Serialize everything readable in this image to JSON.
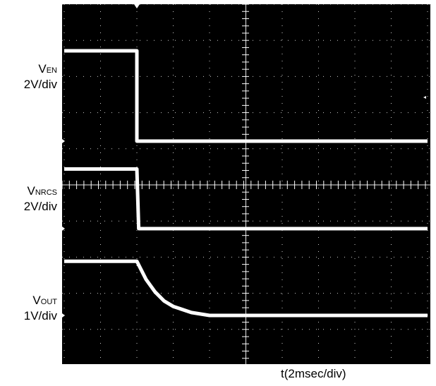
{
  "chart_data": {
    "type": "line",
    "title": "",
    "xlabel": "t(2msec/div)",
    "time_per_div_ms": 2,
    "x_divisions": 10,
    "y_divisions": 10,
    "grid": true,
    "channels": [
      {
        "label_main": "V",
        "label_sub": "EN",
        "scale": "2V/div"
      },
      {
        "label_main": "V",
        "label_sub": "NRCS",
        "scale": "2V/div"
      },
      {
        "label_main": "V",
        "label_sub": "OUT",
        "scale": "1V/div"
      }
    ],
    "series": [
      {
        "x_ms": [
          0,
          4,
          4,
          20
        ],
        "y_volts": [
          5.0,
          5.0,
          0.0,
          0.0
        ]
      },
      {
        "x_ms": [
          0,
          4,
          4.1,
          20
        ],
        "y_volts": [
          3.3,
          3.3,
          0.0,
          0.0
        ]
      },
      {
        "x_ms": [
          0,
          4,
          4.5,
          5,
          5.5,
          6,
          7,
          8,
          20
        ],
        "y_volts": [
          1.5,
          1.5,
          1.0,
          0.65,
          0.4,
          0.25,
          0.08,
          0.0,
          0.0
        ]
      }
    ]
  }
}
